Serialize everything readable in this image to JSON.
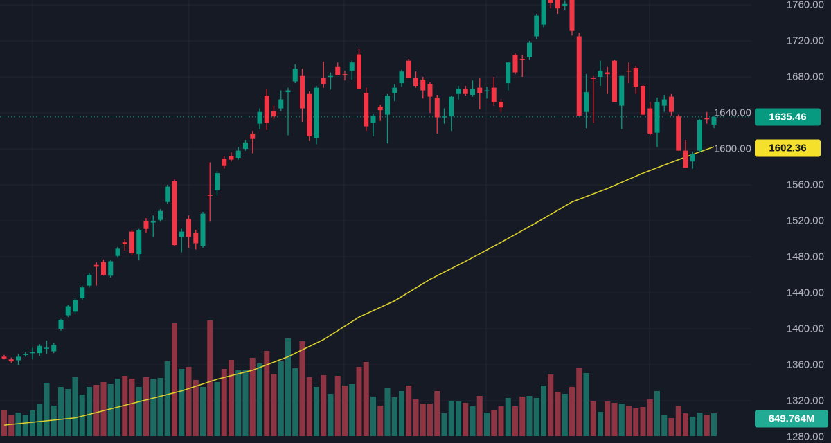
{
  "chart_data": {
    "type": "candlestick",
    "ylim": [
      1280.8,
      1765.4
    ],
    "y_ticks": [
      "1280.00",
      "1320.00",
      "1360.00",
      "1400.00",
      "1440.00",
      "1480.00",
      "1520.00",
      "1560.00",
      "1600.00",
      "1640.00",
      "1680.00",
      "1720.00",
      "1760.00"
    ],
    "grid": true,
    "colors": {
      "background": "#161a25",
      "up": "#089981",
      "down": "#f23645",
      "volume_up": "#1c6b62",
      "volume_down": "#8e3443",
      "ma": "#d9cf2e",
      "grid": "#232734"
    },
    "last_price_label": "1635.46",
    "ma_label": "1602.36",
    "volume_label": "649.764M",
    "ohlc": [
      [
        1369,
        1371,
        1366,
        1367
      ],
      [
        1366,
        1368,
        1362,
        1364
      ],
      [
        1365,
        1372,
        1360,
        1369
      ],
      [
        1371,
        1374,
        1369,
        1372
      ],
      [
        1374,
        1379,
        1366,
        1374
      ],
      [
        1373,
        1383,
        1370,
        1381
      ],
      [
        1378,
        1387,
        1372,
        1379
      ],
      [
        1375,
        1384,
        1373,
        1382
      ],
      [
        1400,
        1411,
        1398,
        1410
      ],
      [
        1415,
        1427,
        1413,
        1425
      ],
      [
        1419,
        1434,
        1417,
        1432
      ],
      [
        1434,
        1448,
        1432,
        1446
      ],
      [
        1448,
        1462,
        1446,
        1460
      ],
      [
        1471,
        1474,
        1448,
        1469
      ],
      [
        1474,
        1477,
        1459,
        1460
      ],
      [
        1459,
        1476,
        1457,
        1475
      ],
      [
        1481,
        1491,
        1479,
        1489
      ],
      [
        1496,
        1500,
        1487,
        1494
      ],
      [
        1508,
        1510,
        1482,
        1484
      ],
      [
        1483,
        1511,
        1476,
        1510
      ],
      [
        1520,
        1523,
        1507,
        1511
      ],
      [
        1518,
        1526,
        1502,
        1520
      ],
      [
        1521,
        1533,
        1519,
        1531
      ],
      [
        1541,
        1560,
        1539,
        1558
      ],
      [
        1564,
        1566,
        1492,
        1493
      ],
      [
        1502,
        1511,
        1485,
        1508
      ],
      [
        1522,
        1526,
        1490,
        1502
      ],
      [
        1507,
        1510,
        1488,
        1495
      ],
      [
        1492,
        1530,
        1490,
        1528
      ],
      [
        1549,
        1585,
        1519,
        1548
      ],
      [
        1554,
        1575,
        1548,
        1573
      ],
      [
        1589,
        1592,
        1578,
        1581
      ],
      [
        1592,
        1596,
        1586,
        1588
      ],
      [
        1590,
        1602,
        1588,
        1598
      ],
      [
        1600,
        1610,
        1598,
        1607
      ],
      [
        1617,
        1620,
        1595,
        1611
      ],
      [
        1628,
        1645,
        1622,
        1641
      ],
      [
        1659,
        1667,
        1621,
        1629
      ],
      [
        1642,
        1648,
        1633,
        1636
      ],
      [
        1645,
        1665,
        1642,
        1655
      ],
      [
        1663,
        1668,
        1615,
        1665
      ],
      [
        1675,
        1694,
        1673,
        1689
      ],
      [
        1681,
        1689,
        1630,
        1645
      ],
      [
        1661,
        1664,
        1609,
        1614
      ],
      [
        1612,
        1670,
        1605,
        1668
      ],
      [
        1679,
        1697,
        1668,
        1672
      ],
      [
        1680,
        1685,
        1666,
        1681
      ],
      [
        1691,
        1696,
        1683,
        1682
      ],
      [
        1683,
        1687,
        1676,
        1682
      ],
      [
        1687,
        1698,
        1677,
        1696
      ],
      [
        1705,
        1711,
        1667,
        1667
      ],
      [
        1662,
        1668,
        1620,
        1625
      ],
      [
        1629,
        1639,
        1614,
        1637
      ],
      [
        1647,
        1649,
        1631,
        1643
      ],
      [
        1638,
        1661,
        1606,
        1659
      ],
      [
        1662,
        1672,
        1653,
        1668
      ],
      [
        1673,
        1688,
        1669,
        1686
      ],
      [
        1698,
        1700,
        1680,
        1679
      ],
      [
        1679,
        1686,
        1668,
        1670
      ],
      [
        1677,
        1680,
        1656,
        1665
      ],
      [
        1672,
        1674,
        1640,
        1658
      ],
      [
        1657,
        1660,
        1617,
        1635
      ],
      [
        1635,
        1645,
        1628,
        1636
      ],
      [
        1636,
        1659,
        1620,
        1658
      ],
      [
        1661,
        1670,
        1655,
        1667
      ],
      [
        1667,
        1670,
        1659,
        1661
      ],
      [
        1660,
        1676,
        1658,
        1667
      ],
      [
        1668,
        1679,
        1644,
        1662
      ],
      [
        1664,
        1669,
        1656,
        1665
      ],
      [
        1668,
        1680,
        1648,
        1652
      ],
      [
        1652,
        1655,
        1641,
        1646
      ],
      [
        1673,
        1697,
        1665,
        1696
      ],
      [
        1704,
        1706,
        1683,
        1685
      ],
      [
        1700,
        1704,
        1680,
        1699
      ],
      [
        1702,
        1720,
        1699,
        1718
      ],
      [
        1725,
        1750,
        1722,
        1748
      ],
      [
        1738,
        1772,
        1735,
        1768
      ],
      [
        1768,
        1771,
        1756,
        1762
      ],
      [
        1766,
        1769,
        1750,
        1756
      ],
      [
        1759,
        1765,
        1754,
        1761
      ],
      [
        1767,
        1769,
        1726,
        1731
      ],
      [
        1725,
        1729,
        1637,
        1637
      ],
      [
        1641,
        1683,
        1623,
        1663
      ],
      [
        1679,
        1681,
        1629,
        1678
      ],
      [
        1680,
        1698,
        1670,
        1687
      ],
      [
        1685,
        1691,
        1661,
        1683
      ],
      [
        1698,
        1699,
        1652,
        1652
      ],
      [
        1648,
        1681,
        1622,
        1681
      ],
      [
        1687,
        1696,
        1673,
        1686
      ],
      [
        1690,
        1692,
        1661,
        1669
      ],
      [
        1670,
        1671,
        1638,
        1638
      ],
      [
        1645,
        1652,
        1615,
        1617
      ],
      [
        1618,
        1657,
        1602,
        1652
      ],
      [
        1648,
        1660,
        1641,
        1655
      ],
      [
        1658,
        1661,
        1637,
        1641
      ],
      [
        1636,
        1638,
        1598,
        1598
      ],
      [
        1598,
        1610,
        1579,
        1579
      ],
      [
        1586,
        1597,
        1578,
        1594
      ],
      [
        1598,
        1633,
        1596,
        1632
      ],
      [
        1634,
        1641,
        1628,
        1633
      ],
      [
        1627,
        1637,
        1623,
        1635.46
      ]
    ],
    "volume_millions": [
      749,
      591,
      670,
      611,
      729,
      906,
      1517,
      867,
      1399,
      1340,
      1675,
      1182,
      1399,
      1458,
      1537,
      1478,
      1635,
      1714,
      1635,
      1399,
      1675,
      1635,
      1655,
      2128,
      3211,
      1911,
      1970,
      1596,
      1399,
      3290,
      1537,
      1911,
      2167,
      1872,
      1872,
      2226,
      2069,
      2423,
      1773,
      2128,
      2778,
      1931,
      2699,
      1675,
      1399,
      1734,
      1202,
      1714,
      1438,
      1478,
      1970,
      2108,
      1123,
      867,
      1379,
      1103,
      1281,
      1438,
      1044,
      926,
      926,
      1281,
      650,
      1005,
      985,
      946,
      847,
      1143,
      670,
      749,
      847,
      1084,
      847,
      1123,
      1143,
      1084,
      1438,
      1753,
      1261,
      1202,
      1399,
      1931,
      1793,
      985,
      690,
      985,
      946,
      926,
      867,
      788,
      827,
      1044,
      1281,
      591,
      512,
      867,
      650,
      552,
      670,
      611,
      649.764
    ],
    "moving_average": [
      [
        0,
        1293
      ],
      [
        10,
        1301
      ],
      [
        20,
        1321
      ],
      [
        25,
        1331
      ],
      [
        30,
        1344
      ],
      [
        35,
        1354
      ],
      [
        40,
        1369
      ],
      [
        45,
        1388
      ],
      [
        50,
        1413
      ],
      [
        55,
        1431
      ],
      [
        60,
        1455
      ],
      [
        65,
        1475
      ],
      [
        70,
        1496
      ],
      [
        75,
        1518
      ],
      [
        80,
        1541
      ],
      [
        85,
        1556
      ],
      [
        90,
        1573
      ],
      [
        95,
        1588
      ],
      [
        100,
        1602.36
      ]
    ]
  }
}
